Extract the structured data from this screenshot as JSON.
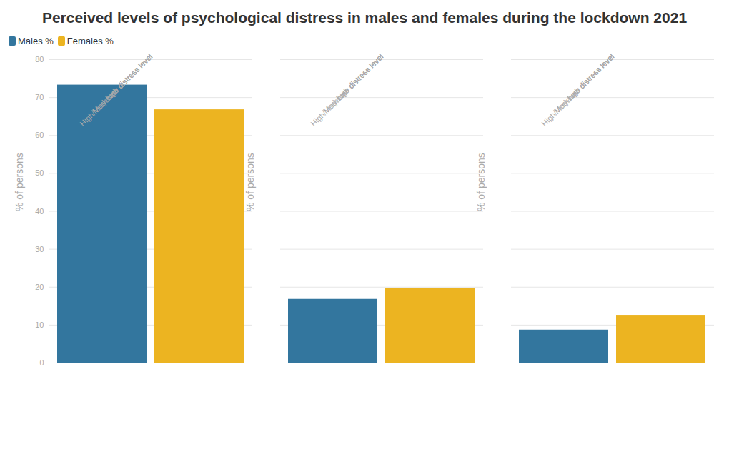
{
  "chart_data": {
    "type": "bar",
    "title": "Perceived levels of psychological distress in males and females during the lockdown 2021",
    "y_label": "% of persons",
    "categories": [
      "Low distress level",
      "Moderate distress level",
      "High/Very high distress level"
    ],
    "series": [
      {
        "name": "Males %",
        "color": "#33769e",
        "values": [
          73.3,
          16.8,
          8.7
        ]
      },
      {
        "name": "Females %",
        "color": "#ecb421",
        "values": [
          66.8,
          19.6,
          12.6
        ]
      }
    ],
    "ylim": [
      0,
      80
    ],
    "yticks": [
      0,
      10,
      20,
      30,
      40,
      50,
      60,
      70,
      80
    ],
    "grid": true,
    "legend": "top-left"
  }
}
